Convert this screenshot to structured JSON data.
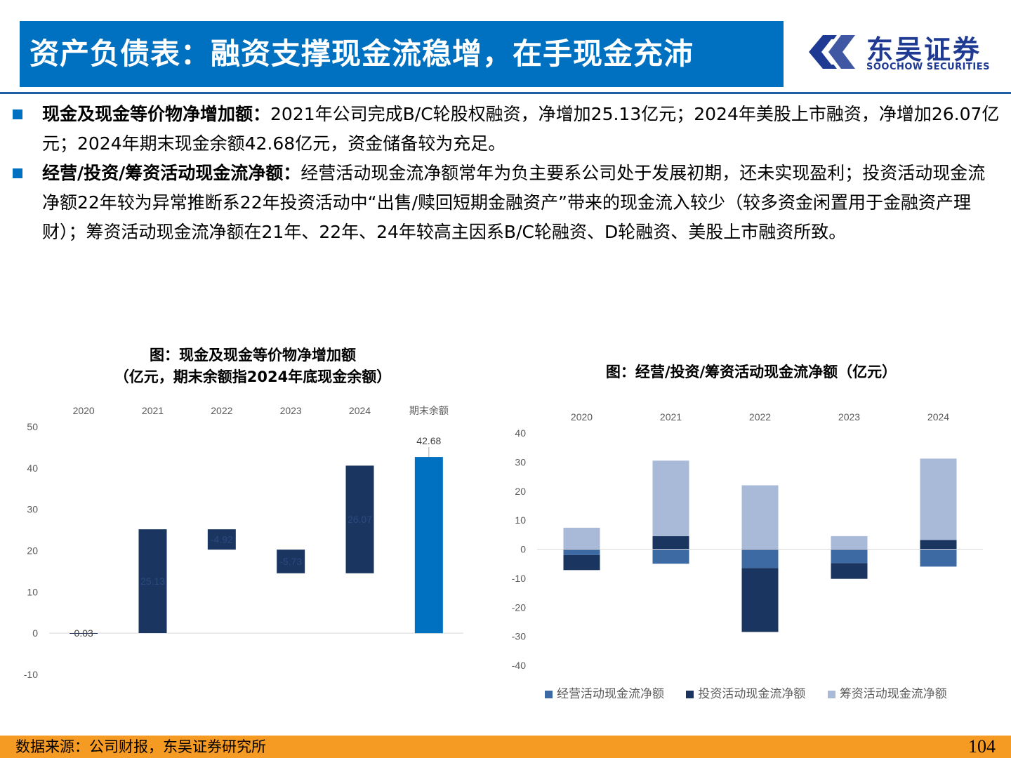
{
  "header": {
    "title": "资产负债表：融资支撑现金流稳增，在手现金充沛",
    "logo_name": "东吴证券",
    "logo_en": "SOOCHOW SECURITIES",
    "accent": "#0070c0"
  },
  "bullets": [
    {
      "head": "现金及现金等价物净增加额：",
      "body": "2021年公司完成B/C轮股权融资，净增加25.13亿元；2024年美股上市融资，净增加26.07亿元；2024年期末现金余额42.68亿元，资金储备较为充足。"
    },
    {
      "head": "经营/投资/筹资活动现金流净额：",
      "body": "经营活动现金流净额常年为负主要系公司处于发展初期，还未实现盈利；投资活动现金流净额22年较为异常推断系22年投资活动中“出售/赎回短期金融资产”带来的现金流入较少（较多资金闲置用于金融资产理财）；筹资活动现金流净额在21年、22年、24年较高主因系B/C轮融资、D轮融资、美股上市融资所致。"
    }
  ],
  "chart_data": [
    {
      "type": "bar",
      "subtype": "waterfall",
      "title": "图：现金及现金等价物净增加额",
      "subtitle": "（亿元，期末余额指2024年底现金余额）",
      "categories": [
        "2020",
        "2021",
        "2022",
        "2023",
        "2024",
        "期末余额"
      ],
      "values": [
        0.03,
        25.13,
        -4.92,
        -5.73,
        26.07,
        42.68
      ],
      "labels": [
        "0.03",
        "25.13",
        "-4.92",
        "-5.73",
        "26.07",
        "42.68"
      ],
      "ylim": [
        -10,
        50
      ],
      "yticks": [
        50,
        40,
        30,
        20,
        10,
        0,
        -10
      ],
      "colors": {
        "change": "#1a3560",
        "total": "#0070c0"
      },
      "grid": false,
      "x_axis_position": "top"
    },
    {
      "type": "bar",
      "subtype": "stacked",
      "title": "图：经营/投资/筹资活动现金流净额（亿元）",
      "categories": [
        "2020",
        "2021",
        "2022",
        "2023",
        "2024"
      ],
      "series": [
        {
          "name": "经营活动现金流净额",
          "values": [
            -2.0,
            -5.0,
            -6.5,
            -4.8,
            -6.0
          ],
          "color": "#3d6aa3"
        },
        {
          "name": "投资活动现金流净额",
          "values": [
            -5.2,
            4.5,
            -22.0,
            -5.4,
            3.2
          ],
          "color": "#1a3560"
        },
        {
          "name": "筹资活动现金流净额",
          "values": [
            7.4,
            26.0,
            22.0,
            4.5,
            28.0
          ],
          "color": "#a9b9d8"
        }
      ],
      "ylim": [
        -40,
        40
      ],
      "yticks": [
        40,
        30,
        20,
        10,
        0,
        -10,
        -20,
        -30,
        -40
      ],
      "grid": false,
      "x_axis_position": "top",
      "legend_position": "bottom"
    }
  ],
  "footer": {
    "source": "数据来源：公司财报，东吴证券研究所",
    "page": "104"
  }
}
